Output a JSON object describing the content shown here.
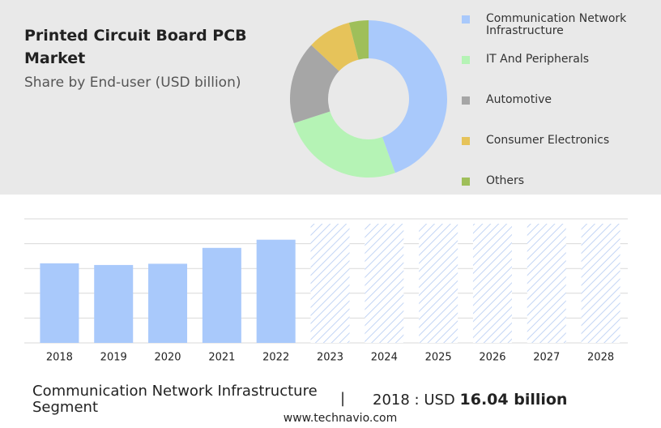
{
  "header": {
    "title": "Printed Circuit Board PCB Market",
    "subtitle": "Share by End-user (USD billion)"
  },
  "chart_data": [
    {
      "type": "pie",
      "categories": [
        "Communication Network Infrastructure",
        "IT And Peripherals",
        "Automotive",
        "Consumer Electronics",
        "Others"
      ],
      "values": [
        44.5,
        25.5,
        17,
        9,
        4
      ],
      "colors": [
        "#a9c9fb",
        "#b5f3b5",
        "#a6a6a6",
        "#e6c35a",
        "#9fbf5a"
      ]
    },
    {
      "type": "bar",
      "categories": [
        "2018",
        "2019",
        "2020",
        "2021",
        "2022",
        "2023",
        "2024",
        "2025",
        "2026",
        "2027",
        "2028"
      ],
      "values": [
        16.04,
        15.7,
        15.95,
        19.15,
        20.8,
        null,
        null,
        null,
        null,
        null,
        null
      ],
      "color": "#a9c9fb",
      "ylim": [
        0,
        25
      ],
      "yticks": [
        0,
        5,
        10,
        15,
        20,
        25
      ],
      "grid": true
    }
  ],
  "footer": {
    "segment": "Communication Network Infrastructure Segment",
    "separator": "|",
    "year_label": "2018 : USD",
    "value": "16.04 billion",
    "source": "www.technavio.com"
  }
}
